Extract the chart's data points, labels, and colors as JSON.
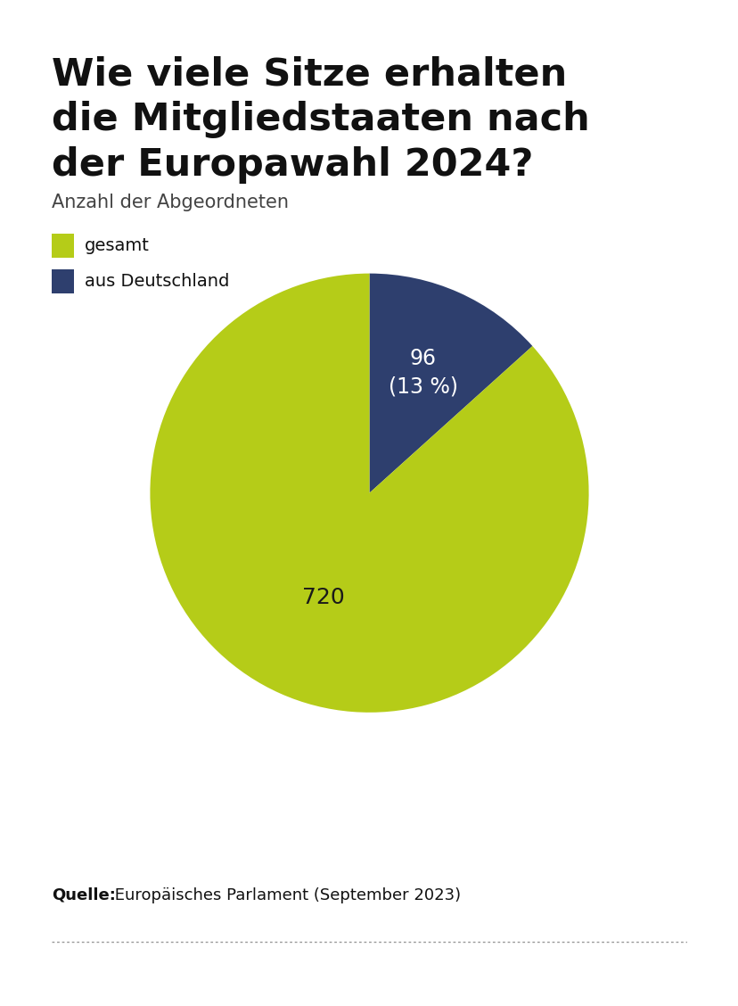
{
  "title_line1": "Wie viele Sitze erhalten",
  "title_line2": "die Mitgliedstaaten nach",
  "title_line3": "der Europawahl 2024?",
  "subtitle": "Anzahl der Abgeordneten",
  "legend_items": [
    "gesamt",
    "aus Deutschland"
  ],
  "legend_colors": [
    "#b5cc18",
    "#2e3f6e"
  ],
  "values": [
    624,
    96
  ],
  "total": 720,
  "colors": [
    "#b5cc18",
    "#2e3f6e"
  ],
  "source_bold": "Quelle:",
  "source_normal": " Europäisches Parlament (September 2023)",
  "background_color": "#ffffff",
  "title_fontsize": 31,
  "subtitle_fontsize": 15,
  "legend_fontsize": 14,
  "label_fontsize_blue": 17,
  "label_fontsize_green": 18,
  "source_fontsize": 13
}
